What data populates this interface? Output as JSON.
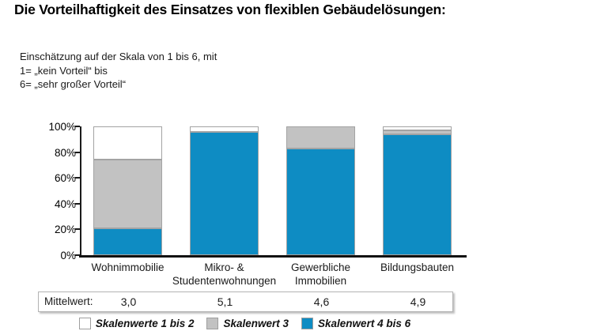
{
  "header": {
    "title": "Die Vorteilhaftigkeit des Einsatzes von flexiblen Gebäudelösungen:"
  },
  "note": {
    "line1": "Einschätzung auf der Skala von 1 bis 6, mit",
    "line2": "1= „kein Vorteil“ bis",
    "line3": "6= „sehr großer Vorteil“"
  },
  "chart_data": {
    "type": "bar",
    "stacked": true,
    "categories": [
      "Wohnimmobilie",
      "Mikro- &\nStudentenwohnungen",
      "Gewerbliche\nImmobilien",
      "Bildungsbauten"
    ],
    "series": [
      {
        "name": "Skalenwerte 1 bis 2",
        "color": "#ffffff",
        "values": [
          26,
          4,
          0,
          3
        ]
      },
      {
        "name": "Skalenwert 3",
        "color": "#c2c2c2",
        "values": [
          53,
          0,
          17,
          3
        ]
      },
      {
        "name": "Skalenwert 4 bis 6",
        "color": "#0e8cc3",
        "values": [
          21,
          96,
          83,
          94
        ]
      }
    ],
    "ylim": [
      0,
      100
    ],
    "yticks": [
      "0%",
      "20%",
      "40%",
      "60%",
      "80%",
      "100%"
    ],
    "grid": false,
    "legend_position": "bottom",
    "xlabel": "",
    "ylabel": ""
  },
  "mittelwert": {
    "label": "Mittelwert:",
    "values": [
      "3,0",
      "5,1",
      "4,6",
      "4,9"
    ]
  },
  "colors": {
    "accent_blue": "#0e8cc3",
    "neutral_gray": "#c2c2c2",
    "white": "#ffffff",
    "axis": "#1a1a1a"
  }
}
